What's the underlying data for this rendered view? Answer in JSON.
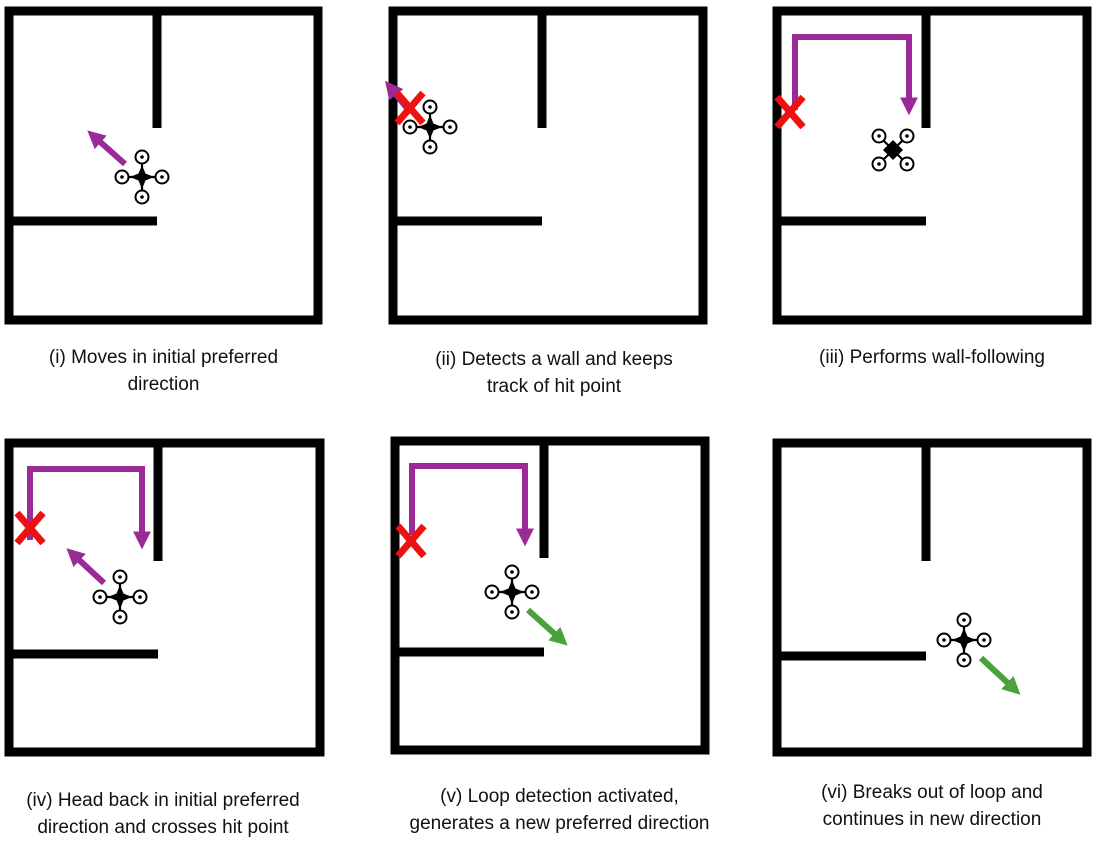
{
  "panels": [
    {
      "id": "i",
      "caption": [
        "(i) Moves in initial preferred",
        "direction"
      ]
    },
    {
      "id": "ii",
      "caption": [
        "(ii) Detects a wall and keeps",
        "track of hit point"
      ]
    },
    {
      "id": "iii",
      "caption": [
        "(iii) Performs wall-following"
      ]
    },
    {
      "id": "iv",
      "caption": [
        "(iv) Head back in initial preferred",
        "direction and crosses hit point"
      ]
    },
    {
      "id": "v",
      "caption": [
        "(v) Loop detection activated,",
        "generates a new preferred direction"
      ]
    },
    {
      "id": "vi",
      "caption": [
        "(vi) Breaks out of loop and",
        "continues in new direction"
      ]
    }
  ],
  "colors": {
    "wall": "#000000",
    "path_arrow": "#9b2a96",
    "new_direction_arrow": "#4aa33a",
    "hit_point_marker": "#ee1111",
    "drone": "#000000"
  },
  "icons": [
    "drone-icon",
    "hit-point-x-icon",
    "arrow-icon"
  ]
}
